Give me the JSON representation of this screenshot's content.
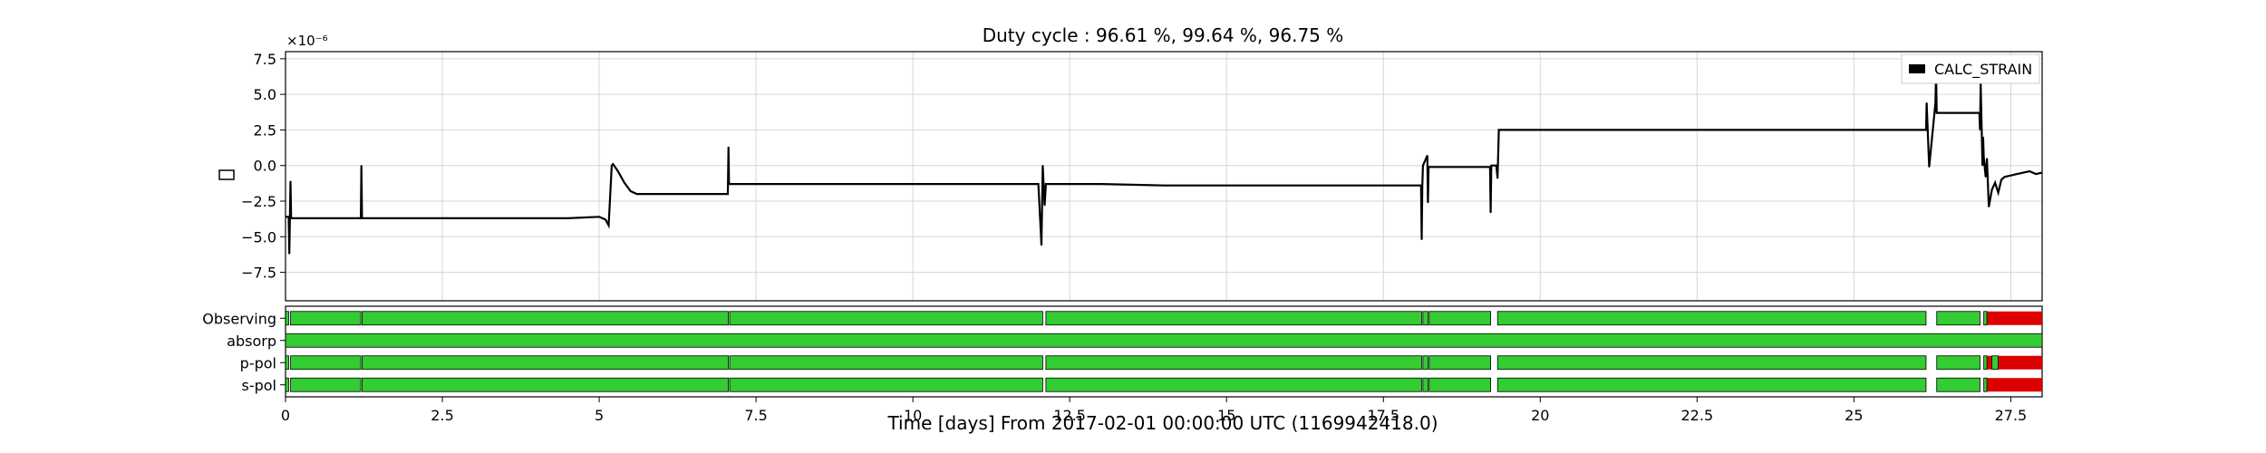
{
  "chart_data": {
    "type": "line",
    "title": "Duty cycle : 96.61 %, 99.64 %, 96.75 %",
    "xlabel": "Time [days] From 2017-02-01 00:00:00 UTC (1169942418.0)",
    "ylabel": "",
    "y_offset_label": "×10⁻⁶",
    "xlim": [
      0,
      28
    ],
    "ylim": [
      -9.5,
      8.0
    ],
    "x_ticks": [
      {
        "value": 0,
        "label": "0"
      },
      {
        "value": 2.5,
        "label": "2.5"
      },
      {
        "value": 5,
        "label": "5"
      },
      {
        "value": 7.5,
        "label": "7.5"
      },
      {
        "value": 10,
        "label": "10"
      },
      {
        "value": 12.5,
        "label": "12.5"
      },
      {
        "value": 15,
        "label": "15"
      },
      {
        "value": 17.5,
        "label": "17.5"
      },
      {
        "value": 20,
        "label": "20"
      },
      {
        "value": 22.5,
        "label": "22.5"
      },
      {
        "value": 25,
        "label": "25"
      },
      {
        "value": 27.5,
        "label": "27.5"
      }
    ],
    "y_ticks": [
      {
        "value": 7.5,
        "label": "7.5"
      },
      {
        "value": 5.0,
        "label": "5.0"
      },
      {
        "value": 2.5,
        "label": "2.5"
      },
      {
        "value": 0.0,
        "label": "0.0"
      },
      {
        "value": -2.5,
        "label": "−2.5"
      },
      {
        "value": -5.0,
        "label": "−5.0"
      },
      {
        "value": -7.5,
        "label": "−7.5"
      }
    ],
    "grid": true,
    "legend": {
      "placement": "top-right",
      "label": "CALC_STRAIN",
      "color": "#000000"
    },
    "series": [
      {
        "name": "CALC_STRAIN",
        "color": "#000000",
        "x": [
          0.0,
          0.05,
          0.06,
          0.08,
          0.09,
          0.12,
          1.0,
          1.2,
          1.21,
          1.22,
          1.23,
          1.5,
          3.0,
          4.5,
          5.0,
          5.1,
          5.15,
          5.2,
          5.22,
          5.3,
          5.4,
          5.5,
          5.6,
          5.8,
          6.5,
          7.05,
          7.06,
          7.07,
          7.08,
          7.1,
          8.0,
          10.0,
          12.0,
          12.05,
          12.07,
          12.1,
          12.12,
          12.14,
          12.2,
          13.0,
          14.0,
          15.0,
          16.0,
          17.0,
          18.0,
          18.1,
          18.11,
          18.12,
          18.13,
          18.2,
          18.21,
          18.22,
          18.23,
          18.3,
          19.0,
          19.2,
          19.21,
          19.22,
          19.3,
          19.32,
          19.34,
          19.36,
          20.0,
          22.0,
          24.0,
          26.0,
          26.15,
          26.16,
          26.2,
          26.3,
          26.31,
          26.32,
          26.35,
          26.4,
          26.5,
          26.9,
          27.0,
          27.01,
          27.02,
          27.05,
          27.06,
          27.07,
          27.1,
          27.12,
          27.15,
          27.2,
          27.25,
          27.3,
          27.35,
          27.4,
          27.5,
          27.6,
          27.7,
          27.8,
          27.9,
          28.0
        ],
        "y": [
          -3.6,
          -3.6,
          -6.2,
          -1.1,
          -3.7,
          -3.7,
          -3.7,
          -3.7,
          0.0,
          -3.7,
          -3.7,
          -3.7,
          -3.7,
          -3.7,
          -3.6,
          -3.8,
          -4.2,
          0.0,
          0.1,
          -0.4,
          -1.2,
          -1.8,
          -2.0,
          -2.0,
          -2.0,
          -2.0,
          1.3,
          -1.3,
          -1.3,
          -1.3,
          -1.3,
          -1.3,
          -1.3,
          -5.6,
          0.0,
          -2.8,
          -1.3,
          -1.3,
          -1.3,
          -1.3,
          -1.4,
          -1.4,
          -1.4,
          -1.4,
          -1.4,
          -1.4,
          -5.2,
          -1.4,
          0.0,
          0.7,
          -2.6,
          -0.1,
          -0.1,
          -0.1,
          -0.1,
          -0.1,
          -3.3,
          0.0,
          0.0,
          -0.9,
          2.5,
          2.5,
          2.5,
          2.5,
          2.5,
          2.5,
          2.5,
          4.4,
          -0.1,
          4.4,
          6.5,
          3.7,
          3.7,
          3.7,
          3.7,
          3.7,
          3.7,
          2.5,
          5.8,
          0.0,
          2.0,
          0.6,
          -0.8,
          0.5,
          -2.9,
          -1.7,
          -1.2,
          -1.9,
          -1.0,
          -0.8,
          -0.7,
          -0.6,
          -0.5,
          -0.4,
          -0.6,
          -0.5
        ]
      }
    ],
    "state_axis": {
      "colors": {
        "active": "#33cc33",
        "inactive": "#dd0000",
        "edge": "#000000"
      },
      "segments": [
        {
          "name": "Observing",
          "active": [
            [
              0.0,
              0.05
            ],
            [
              0.08,
              1.2
            ],
            [
              1.22,
              7.06
            ],
            [
              7.08,
              12.07
            ],
            [
              12.12,
              18.11
            ],
            [
              18.13,
              18.21
            ],
            [
              18.23,
              19.21
            ],
            [
              19.32,
              26.15
            ],
            [
              26.32,
              27.01
            ],
            [
              27.07,
              27.12
            ]
          ],
          "inactive": [
            [
              27.12,
              28.0
            ]
          ]
        },
        {
          "name": "absorp",
          "active": [
            [
              0.0,
              28.0
            ]
          ],
          "inactive": []
        },
        {
          "name": "p-pol",
          "active": [
            [
              0.0,
              0.05
            ],
            [
              0.08,
              1.2
            ],
            [
              1.22,
              7.06
            ],
            [
              7.08,
              12.07
            ],
            [
              12.12,
              18.11
            ],
            [
              18.13,
              18.21
            ],
            [
              18.23,
              19.21
            ],
            [
              19.32,
              26.15
            ],
            [
              26.32,
              27.01
            ],
            [
              27.07,
              27.12
            ],
            [
              27.2,
              27.3
            ]
          ],
          "inactive": [
            [
              27.12,
              27.2
            ],
            [
              27.3,
              28.0
            ]
          ]
        },
        {
          "name": "s-pol",
          "active": [
            [
              0.0,
              0.05
            ],
            [
              0.08,
              1.2
            ],
            [
              1.22,
              7.06
            ],
            [
              7.08,
              12.07
            ],
            [
              12.12,
              18.11
            ],
            [
              18.13,
              18.21
            ],
            [
              18.23,
              19.21
            ],
            [
              19.32,
              26.15
            ],
            [
              26.32,
              27.01
            ],
            [
              27.07,
              27.12
            ]
          ],
          "inactive": [
            [
              27.12,
              28.0
            ]
          ]
        }
      ]
    }
  }
}
